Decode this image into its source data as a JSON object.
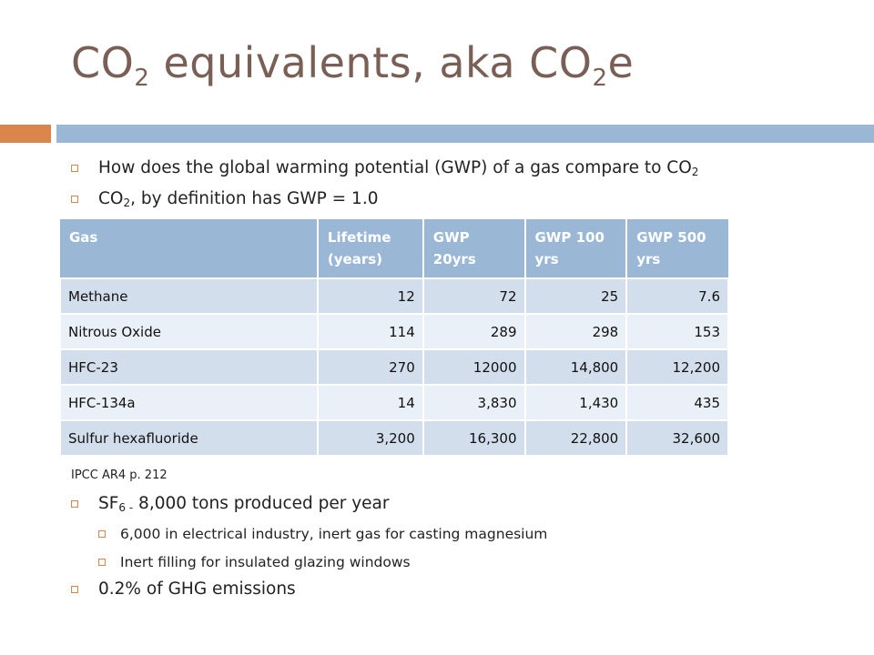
{
  "title": {
    "prefix": "CO",
    "sub1": "2",
    "middle": " equivalents, aka CO",
    "sub2": "2",
    "suffix": "e"
  },
  "bullets_top": [
    {
      "text": "How does the global warming potential (GWP) of a gas compare to CO",
      "sub": "2",
      "after": ""
    },
    {
      "text": "CO",
      "sub": "2",
      "after": ", by definition has GWP = 1.0"
    }
  ],
  "table": {
    "headers": [
      "Gas",
      "Lifetime (years)",
      "GWP 20yrs",
      "GWP 100 yrs",
      "GWP 500 yrs"
    ],
    "rows": [
      [
        "Methane",
        "12",
        "72",
        "25",
        "7.6"
      ],
      [
        "Nitrous Oxide",
        "114",
        "289",
        "298",
        "153"
      ],
      [
        "HFC-23",
        "270",
        "12000",
        "14,800",
        "12,200"
      ],
      [
        "HFC-134a",
        "14",
        "3,830",
        "1,430",
        "435"
      ],
      [
        "Sulfur hexafluoride",
        "3,200",
        "16,300",
        "22,800",
        "32,600"
      ]
    ]
  },
  "source": "IPCC AR4 p. 212",
  "bullet_sf6": {
    "prefix": "SF",
    "sub": "6 -",
    "after": " 8,000 tons produced per year"
  },
  "sub_bullets": [
    "6,000 in electrical industry, inert gas for casting magnesium",
    "Inert filling for insulated glazing windows"
  ],
  "bullet_last": "0.2% of GHG emissions",
  "colors": {
    "accent_orange": "#d9854b",
    "accent_blue": "#9ab7d6",
    "title": "#7a5f56",
    "row_dark": "#d3deec",
    "row_light": "#eaf0f7"
  }
}
